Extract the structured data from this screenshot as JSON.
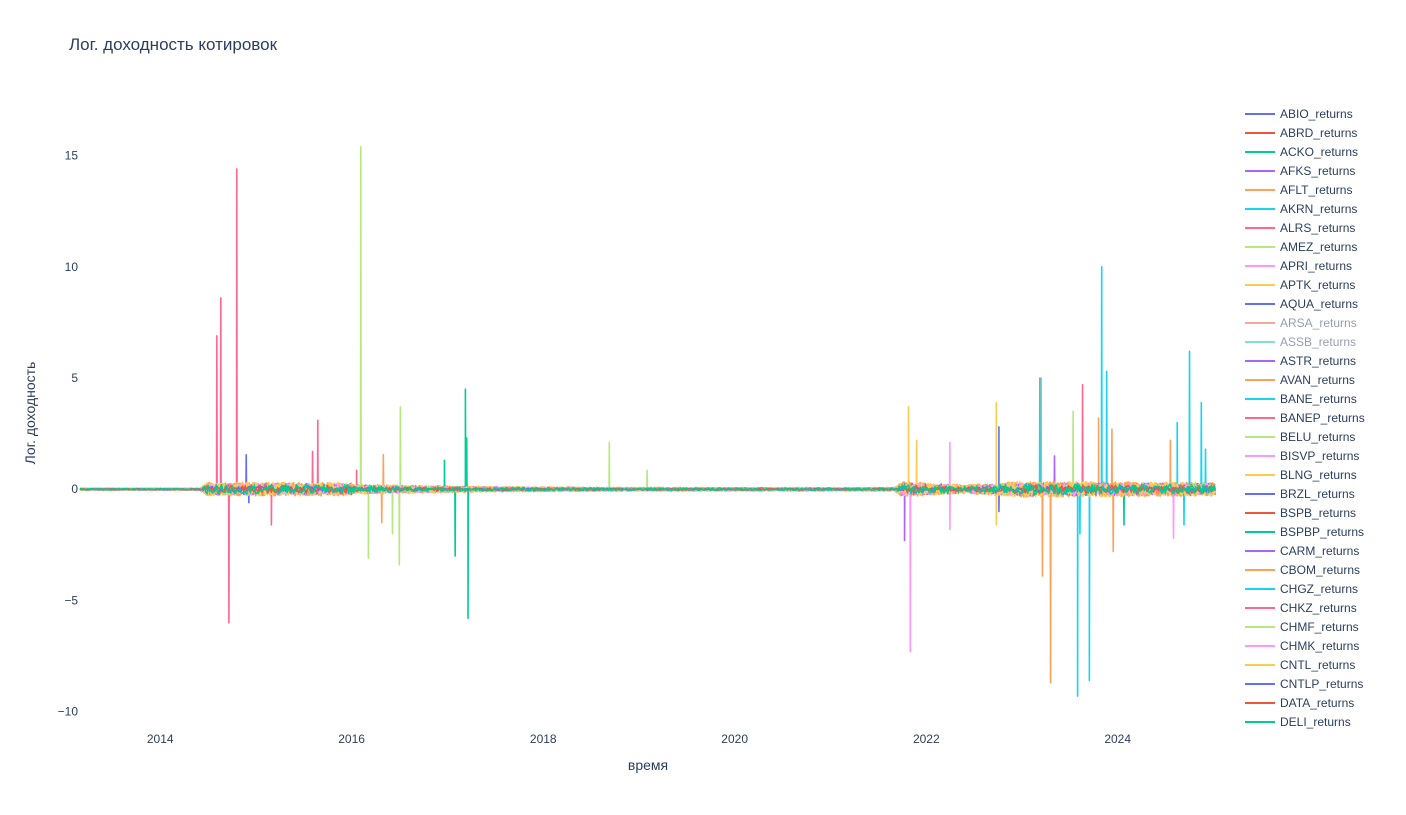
{
  "chart_data": {
    "type": "line",
    "title": "Лог. доходность котировок",
    "xlabel": "время",
    "ylabel": "Лог. доходность",
    "xlim": [
      "2013-03-01",
      "2025-01-10"
    ],
    "ylim": [
      -10.6,
      17.5
    ],
    "x_ticks": [
      "2014",
      "2016",
      "2018",
      "2020",
      "2022",
      "2024"
    ],
    "y_ticks": [
      {
        "value": 15,
        "label": "15"
      },
      {
        "value": 10,
        "label": "10"
      },
      {
        "value": 5,
        "label": "5"
      },
      {
        "value": 0,
        "label": "0"
      },
      {
        "value": -5,
        "label": "−5"
      },
      {
        "value": -10,
        "label": "−10"
      }
    ],
    "grid": false,
    "legend_position": "right",
    "series": [
      {
        "name": "ABIO_returns",
        "color": "#636efa",
        "visible": true,
        "spikes": [
          {
            "date": "2014-11-25",
            "value": 1.55
          },
          {
            "date": "2014-12-05",
            "value": -0.6
          }
        ]
      },
      {
        "name": "ABRD_returns",
        "color": "#ef553b",
        "visible": true,
        "spikes": []
      },
      {
        "name": "ACKO_returns",
        "color": "#00cc96",
        "visible": true,
        "spikes": [
          {
            "date": "2016-12-20",
            "value": 1.3
          },
          {
            "date": "2017-01-30",
            "value": -3.0
          }
        ]
      },
      {
        "name": "AFKS_returns",
        "color": "#ab63fa",
        "visible": true,
        "spikes": [
          {
            "date": "2021-10-10",
            "value": -2.3
          }
        ]
      },
      {
        "name": "AFLT_returns",
        "color": "#ffa15a",
        "visible": true,
        "spikes": [
          {
            "date": "2016-05-01",
            "value": 1.55
          },
          {
            "date": "2016-04-25",
            "value": -1.5
          }
        ]
      },
      {
        "name": "AKRN_returns",
        "color": "#19d3f3",
        "visible": true,
        "spikes": [
          {
            "date": "2023-11-01",
            "value": 10.0
          },
          {
            "date": "2023-08-01",
            "value": -9.3
          },
          {
            "date": "2023-09-15",
            "value": -8.6
          }
        ]
      },
      {
        "name": "ALRS_returns",
        "color": "#ff6692",
        "visible": true,
        "spikes": [
          {
            "date": "2014-10-20",
            "value": 14.4
          },
          {
            "date": "2014-08-20",
            "value": 8.6
          },
          {
            "date": "2014-08-05",
            "value": 6.9
          },
          {
            "date": "2014-09-20",
            "value": -6.0
          },
          {
            "date": "2015-08-25",
            "value": 3.1
          },
          {
            "date": "2023-08-20",
            "value": 4.7
          }
        ]
      },
      {
        "name": "AMEZ_returns",
        "color": "#b6e880",
        "visible": true,
        "spikes": [
          {
            "date": "2016-02-05",
            "value": 15.4
          },
          {
            "date": "2016-03-05",
            "value": -3.1
          },
          {
            "date": "2016-07-05",
            "value": 3.7
          },
          {
            "date": "2016-07-01",
            "value": -3.4
          },
          {
            "date": "2018-09-10",
            "value": 2.1
          },
          {
            "date": "2023-07-15",
            "value": 3.5
          }
        ]
      },
      {
        "name": "APRI_returns",
        "color": "#ff97ff",
        "visible": true,
        "spikes": [
          {
            "date": "2021-11-01",
            "value": -7.3
          },
          {
            "date": "2022-04-01",
            "value": 2.1
          },
          {
            "date": "2022-04-01",
            "value": -1.8
          }
        ]
      },
      {
        "name": "APTK_returns",
        "color": "#fecb52",
        "visible": true,
        "spikes": [
          {
            "date": "2021-10-25",
            "value": 3.7
          },
          {
            "date": "2022-09-25",
            "value": 3.9
          },
          {
            "date": "2022-09-25",
            "value": -1.6
          }
        ]
      },
      {
        "name": "AQUA_returns",
        "color": "#636efa",
        "visible": true,
        "spikes": [
          {
            "date": "2022-10-05",
            "value": 2.8
          },
          {
            "date": "2022-10-05",
            "value": -1.0
          }
        ]
      },
      {
        "name": "ARSA_returns",
        "color": "#ef553b",
        "visible": false,
        "spikes": []
      },
      {
        "name": "ASSB_returns",
        "color": "#00cc96",
        "visible": false,
        "spikes": []
      },
      {
        "name": "ASTR_returns",
        "color": "#ab63fa",
        "visible": true,
        "spikes": [
          {
            "date": "2023-05-05",
            "value": 1.5
          }
        ]
      },
      {
        "name": "AVAN_returns",
        "color": "#ffa15a",
        "visible": true,
        "spikes": [
          {
            "date": "2023-03-15",
            "value": 5.0
          },
          {
            "date": "2023-04-20",
            "value": -8.7
          },
          {
            "date": "2023-03-20",
            "value": -3.9
          },
          {
            "date": "2023-10-20",
            "value": 3.2
          },
          {
            "date": "2023-12-15",
            "value": -2.8
          },
          {
            "date": "2024-07-20",
            "value": 2.2
          }
        ]
      },
      {
        "name": "BANE_returns",
        "color": "#19d3f3",
        "visible": true,
        "spikes": [
          {
            "date": "2023-03-10",
            "value": 5.0
          },
          {
            "date": "2023-11-20",
            "value": 5.3
          },
          {
            "date": "2024-10-01",
            "value": 6.2
          },
          {
            "date": "2024-11-15",
            "value": 3.9
          },
          {
            "date": "2024-08-15",
            "value": 3.0
          },
          {
            "date": "2024-09-10",
            "value": -1.6
          },
          {
            "date": "2023-08-10",
            "value": -2.0
          }
        ]
      },
      {
        "name": "BANEP_returns",
        "color": "#ff6692",
        "visible": true,
        "spikes": [
          {
            "date": "2015-03-01",
            "value": -1.6
          },
          {
            "date": "2015-08-05",
            "value": 1.7
          }
        ]
      },
      {
        "name": "BELU_returns",
        "color": "#b6e880",
        "visible": true,
        "spikes": [
          {
            "date": "2016-06-05",
            "value": -2.0
          },
          {
            "date": "2019-02-01",
            "value": 0.85
          }
        ]
      },
      {
        "name": "BISVP_returns",
        "color": "#ff97ff",
        "visible": true,
        "spikes": [
          {
            "date": "2024-08-01",
            "value": -2.2
          }
        ]
      },
      {
        "name": "BLNG_returns",
        "color": "#fecb52",
        "visible": true,
        "spikes": [
          {
            "date": "2021-11-25",
            "value": 2.2
          }
        ]
      },
      {
        "name": "BRZL_returns",
        "color": "#636efa",
        "visible": true,
        "spikes": []
      },
      {
        "name": "BSPB_returns",
        "color": "#ef553b",
        "visible": true,
        "spikes": []
      },
      {
        "name": "BSPBP_returns",
        "color": "#00cc96",
        "visible": true,
        "spikes": [
          {
            "date": "2017-03-10",
            "value": 4.5
          },
          {
            "date": "2017-03-20",
            "value": -5.8
          },
          {
            "date": "2017-03-15",
            "value": 2.3
          },
          {
            "date": "2024-01-25",
            "value": -1.6
          }
        ]
      },
      {
        "name": "CARM_returns",
        "color": "#ab63fa",
        "visible": true,
        "spikes": []
      },
      {
        "name": "CBOM_returns",
        "color": "#ffa15a",
        "visible": true,
        "spikes": [
          {
            "date": "2023-12-10",
            "value": 2.7
          }
        ]
      },
      {
        "name": "CHGZ_returns",
        "color": "#19d3f3",
        "visible": true,
        "spikes": [
          {
            "date": "2024-12-01",
            "value": 1.8
          }
        ]
      },
      {
        "name": "CHKZ_returns",
        "color": "#ff6692",
        "visible": true,
        "spikes": [
          {
            "date": "2016-01-20",
            "value": 0.85
          }
        ]
      },
      {
        "name": "CHMF_returns",
        "color": "#b6e880",
        "visible": true,
        "spikes": []
      },
      {
        "name": "CHMK_returns",
        "color": "#ff97ff",
        "visible": true,
        "spikes": []
      },
      {
        "name": "CNTL_returns",
        "color": "#fecb52",
        "visible": true,
        "spikes": []
      },
      {
        "name": "CNTLP_returns",
        "color": "#636efa",
        "visible": true,
        "spikes": []
      },
      {
        "name": "DATA_returns",
        "color": "#ef553b",
        "visible": true,
        "spikes": []
      },
      {
        "name": "DELI_returns",
        "color": "#00cc96",
        "visible": true,
        "spikes": []
      }
    ]
  }
}
